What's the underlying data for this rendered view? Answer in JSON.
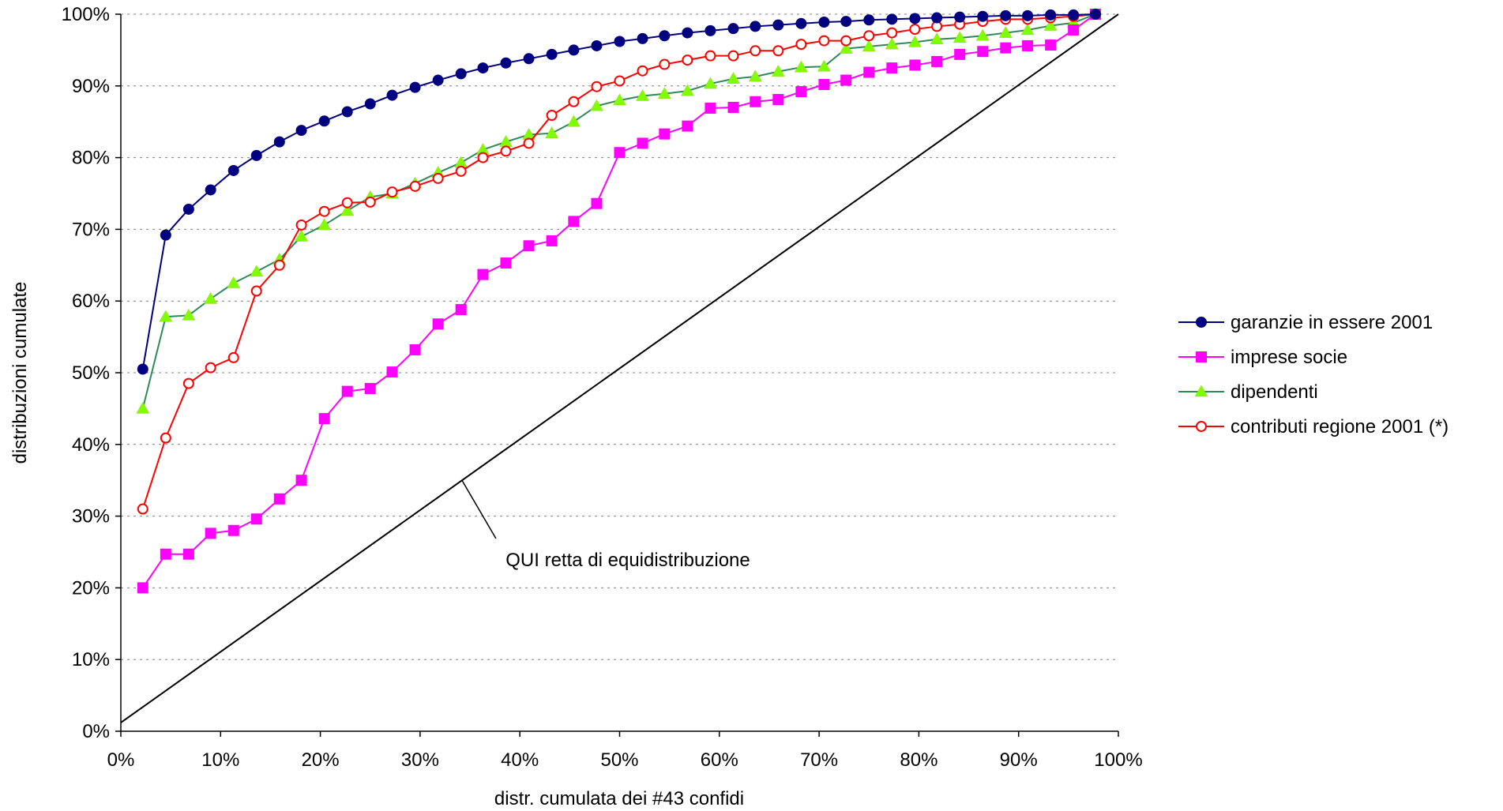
{
  "chart_data": {
    "type": "line",
    "title": "",
    "xlabel": "distr. cumulata dei #43 confidi",
    "ylabel": "distribuzioni cumulate",
    "xlim": [
      0,
      100
    ],
    "ylim": [
      0,
      100
    ],
    "x_ticks": [
      "0%",
      "10%",
      "20%",
      "30%",
      "40%",
      "50%",
      "60%",
      "70%",
      "80%",
      "90%",
      "100%"
    ],
    "y_ticks": [
      "0%",
      "10%",
      "20%",
      "30%",
      "40%",
      "50%",
      "60%",
      "70%",
      "80%",
      "90%",
      "100%"
    ],
    "grid": "horizontal dashed",
    "legend_position": "right",
    "x": [
      2.2,
      4.5,
      6.8,
      9.0,
      11.3,
      13.6,
      15.9,
      18.1,
      20.4,
      22.7,
      25.0,
      27.2,
      29.5,
      31.8,
      34.1,
      36.3,
      38.6,
      40.9,
      43.2,
      45.4,
      47.7,
      50.0,
      52.3,
      54.5,
      56.8,
      59.1,
      61.4,
      63.6,
      65.9,
      68.2,
      70.5,
      72.7,
      75.0,
      77.3,
      79.6,
      81.8,
      84.1,
      86.4,
      88.7,
      90.9,
      93.2,
      95.5,
      97.7
    ],
    "series": [
      {
        "name": "garanzie in essere 2001",
        "color": "#000080",
        "marker": "circle-filled",
        "values": [
          50.5,
          69.2,
          72.8,
          75.5,
          78.2,
          80.3,
          82.2,
          83.8,
          85.1,
          86.4,
          87.5,
          88.7,
          89.8,
          90.8,
          91.7,
          92.5,
          93.2,
          93.8,
          94.4,
          95.0,
          95.6,
          96.2,
          96.6,
          97.0,
          97.4,
          97.7,
          98.0,
          98.3,
          98.5,
          98.7,
          98.9,
          99.0,
          99.2,
          99.3,
          99.4,
          99.5,
          99.6,
          99.7,
          99.8,
          99.8,
          99.9,
          99.9,
          100.0
        ]
      },
      {
        "name": "imprese socie",
        "color": "#FF00FF",
        "marker": "square-filled",
        "values": [
          20.0,
          24.7,
          24.7,
          27.6,
          28.0,
          29.6,
          32.4,
          35.0,
          43.6,
          47.4,
          47.8,
          50.1,
          53.2,
          56.8,
          58.8,
          63.7,
          65.3,
          67.7,
          68.4,
          71.1,
          73.6,
          80.7,
          82.0,
          83.3,
          84.4,
          86.9,
          87.0,
          87.8,
          88.1,
          89.2,
          90.2,
          90.8,
          91.9,
          92.5,
          92.9,
          93.4,
          94.4,
          94.8,
          95.3,
          95.6,
          95.7,
          97.8,
          100.0
        ]
      },
      {
        "name": "dipendenti",
        "color": "#80FF00",
        "line_color": "#2E8B57",
        "marker": "triangle-filled",
        "values": [
          45.0,
          57.8,
          58.0,
          60.3,
          62.5,
          64.1,
          65.8,
          69.0,
          70.6,
          72.6,
          74.5,
          75.0,
          76.4,
          77.9,
          79.3,
          81.1,
          82.2,
          83.2,
          83.4,
          85.0,
          87.2,
          88.0,
          88.6,
          88.9,
          89.3,
          90.3,
          91.0,
          91.3,
          92.0,
          92.6,
          92.7,
          95.2,
          95.5,
          95.8,
          96.1,
          96.5,
          96.7,
          97.0,
          97.4,
          97.8,
          98.4,
          98.8,
          100.0
        ]
      },
      {
        "name": "contributi regione 2001 (*)",
        "color": "#FF0000",
        "marker": "circle-open",
        "values": [
          31.0,
          40.9,
          48.5,
          50.7,
          52.1,
          61.4,
          65.0,
          70.6,
          72.5,
          73.7,
          73.8,
          75.2,
          76.0,
          77.1,
          78.1,
          80.0,
          80.9,
          82.0,
          85.9,
          87.8,
          89.9,
          90.7,
          92.1,
          93.0,
          93.6,
          94.2,
          94.2,
          94.9,
          94.9,
          95.8,
          96.3,
          96.3,
          97.0,
          97.4,
          97.9,
          98.3,
          98.6,
          99.0,
          99.3,
          99.3,
          99.5,
          99.7,
          100.0
        ]
      }
    ],
    "reference_line": {
      "points": [
        [
          0,
          1.2
        ],
        [
          100,
          100
        ]
      ],
      "color": "#000000"
    },
    "annotation": {
      "text": "QUI retta di equidistribuzione",
      "points_to": [
        34.2,
        35.0
      ],
      "anchor": [
        37.6,
        26.0
      ]
    }
  }
}
